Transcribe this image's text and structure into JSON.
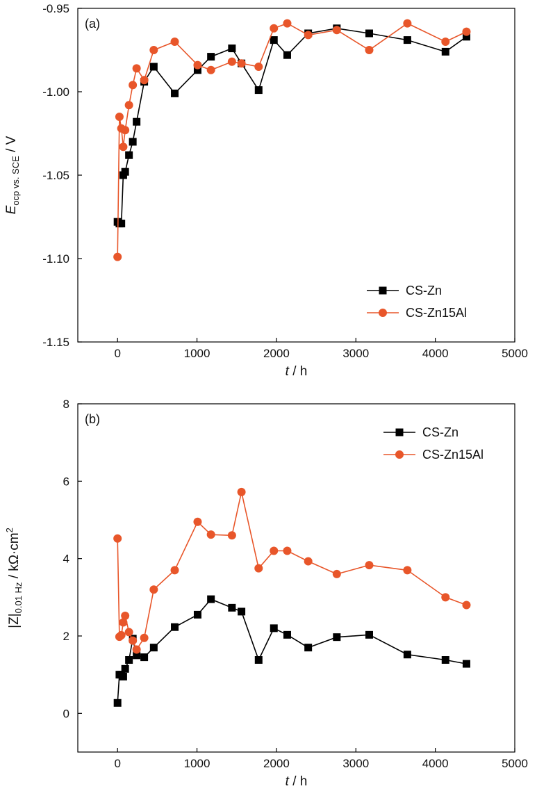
{
  "colors": {
    "cs_zn": "#000000",
    "cs_zn15al": "#e8562a"
  },
  "chart_data": [
    {
      "type": "line",
      "panel_label": "(a)",
      "xlabel": {
        "var": "t",
        "unit": " / h"
      },
      "ylabel": {
        "var": "E",
        "sub": "ocp vs. SCE",
        "unit": " / V"
      },
      "xlim": [
        -500,
        5000
      ],
      "ylim": [
        -1.15,
        -0.95
      ],
      "x_ticks": [
        0,
        1000,
        2000,
        3000,
        4000,
        5000
      ],
      "x_tick_labels": [
        "0",
        "1000",
        "2000",
        "3000",
        "4000",
        "5000"
      ],
      "y_ticks": [
        -1.15,
        -1.1,
        -1.05,
        -1.0,
        -0.95
      ],
      "y_tick_labels": [
        "-1.15",
        "-1.10",
        "-1.05",
        "-1.00",
        "-0.95"
      ],
      "legend_position": "bottom-right",
      "series": [
        {
          "name": "CS-Zn",
          "marker": "square",
          "x": [
            0,
            24,
            48,
            72,
            96,
            144,
            192,
            240,
            336,
            456,
            720,
            1008,
            1176,
            1440,
            1560,
            1776,
            1968,
            2136,
            2400,
            2760,
            3168,
            3648,
            4128,
            4392
          ],
          "y": [
            -1.078,
            -1.079,
            -1.079,
            -1.05,
            -1.048,
            -1.038,
            -1.03,
            -1.018,
            -0.994,
            -0.985,
            -1.001,
            -0.987,
            -0.979,
            -0.974,
            -0.983,
            -0.999,
            -0.969,
            -0.978,
            -0.965,
            -0.962,
            -0.965,
            -0.969,
            -0.976,
            -0.967
          ]
        },
        {
          "name": "CS-Zn15Al",
          "marker": "circle",
          "x": [
            0,
            24,
            48,
            72,
            96,
            144,
            192,
            240,
            336,
            456,
            720,
            1008,
            1176,
            1440,
            1560,
            1776,
            1968,
            2136,
            2400,
            2760,
            3168,
            3648,
            4128,
            4392
          ],
          "y": [
            -1.099,
            -1.015,
            -1.022,
            -1.033,
            -1.023,
            -1.008,
            -0.996,
            -0.986,
            -0.993,
            -0.975,
            -0.97,
            -0.984,
            -0.987,
            -0.982,
            -0.983,
            -0.985,
            -0.962,
            -0.959,
            -0.966,
            -0.963,
            -0.975,
            -0.959,
            -0.97,
            -0.964
          ]
        }
      ]
    },
    {
      "type": "line",
      "panel_label": "(b)",
      "xlabel": {
        "var": "t",
        "unit": " / h"
      },
      "ylabel": {
        "var": "|Z|",
        "sub": "0.01 Hz",
        "unit": " / kΩ·cm",
        "sup": "2"
      },
      "xlim": [
        -500,
        5000
      ],
      "ylim": [
        -1,
        8
      ],
      "x_ticks": [
        0,
        1000,
        2000,
        3000,
        4000,
        5000
      ],
      "x_tick_labels": [
        "0",
        "1000",
        "2000",
        "3000",
        "4000",
        "5000"
      ],
      "y_ticks": [
        0,
        2,
        4,
        6,
        8
      ],
      "y_tick_labels": [
        "0",
        "2",
        "4",
        "6",
        "8"
      ],
      "legend_position": "top-right",
      "series": [
        {
          "name": "CS-Zn",
          "marker": "square",
          "x": [
            0,
            24,
            48,
            72,
            96,
            144,
            192,
            240,
            336,
            456,
            720,
            1008,
            1176,
            1440,
            1560,
            1776,
            1968,
            2136,
            2400,
            2760,
            3168,
            3648,
            4128,
            4392
          ],
          "y": [
            0.27,
            1.0,
            1.0,
            0.95,
            1.15,
            1.38,
            1.93,
            1.5,
            1.45,
            1.7,
            2.23,
            2.55,
            2.95,
            2.73,
            2.63,
            1.38,
            2.2,
            2.03,
            1.7,
            1.97,
            2.03,
            1.52,
            1.38,
            1.28
          ]
        },
        {
          "name": "CS-Zn15Al",
          "marker": "circle",
          "x": [
            0,
            24,
            48,
            72,
            96,
            144,
            192,
            240,
            336,
            456,
            720,
            1008,
            1176,
            1440,
            1560,
            1776,
            1968,
            2136,
            2400,
            2760,
            3168,
            3648,
            4128,
            4392
          ],
          "y": [
            4.52,
            1.98,
            2.02,
            2.35,
            2.52,
            2.1,
            1.88,
            1.65,
            1.95,
            3.2,
            3.7,
            4.95,
            4.62,
            4.6,
            5.72,
            3.75,
            4.2,
            4.2,
            3.93,
            3.6,
            3.83,
            3.7,
            3.0,
            2.8
          ]
        }
      ]
    }
  ]
}
